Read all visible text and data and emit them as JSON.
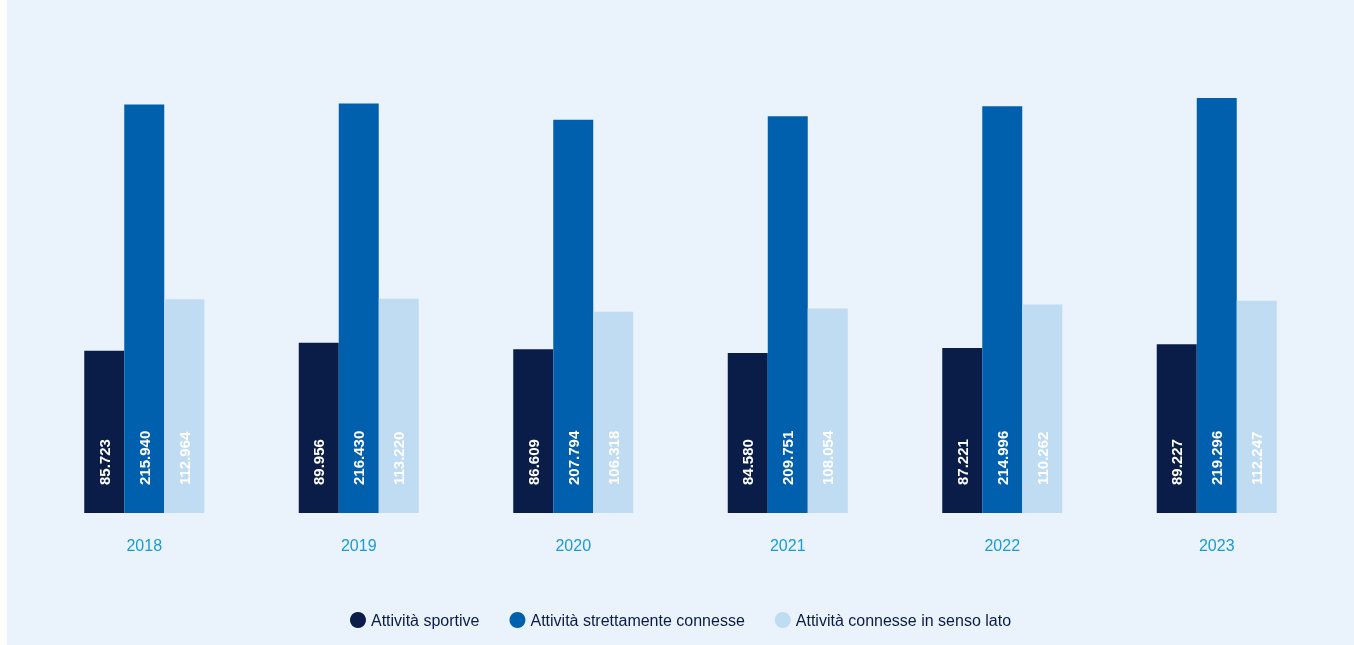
{
  "chart_data": {
    "type": "bar",
    "categories": [
      "2018",
      "2019",
      "2020",
      "2021",
      "2022",
      "2023"
    ],
    "series": [
      {
        "name": "Attività sportive",
        "color": "#0a1c48",
        "values": [
          85723,
          89956,
          86609,
          84580,
          87221,
          89227
        ],
        "value_labels": [
          "85.723",
          "89.956",
          "86.609",
          "84.580",
          "87.221",
          "89.227"
        ]
      },
      {
        "name": "Attività strettamente connesse",
        "color": "#0060ad",
        "values": [
          215940,
          216430,
          207794,
          209751,
          214996,
          219296
        ],
        "value_labels": [
          "215.940",
          "216.430",
          "207.794",
          "209.751",
          "214.996",
          "219.296"
        ]
      },
      {
        "name": "Attività connesse in senso lato",
        "color": "#bfdcf3",
        "values": [
          112964,
          113220,
          106318,
          108054,
          110262,
          112247
        ],
        "value_labels": [
          "112.964",
          "113.220",
          "106.318",
          "108.054",
          "110.262",
          "112.247"
        ]
      }
    ],
    "legend": "bottom"
  }
}
